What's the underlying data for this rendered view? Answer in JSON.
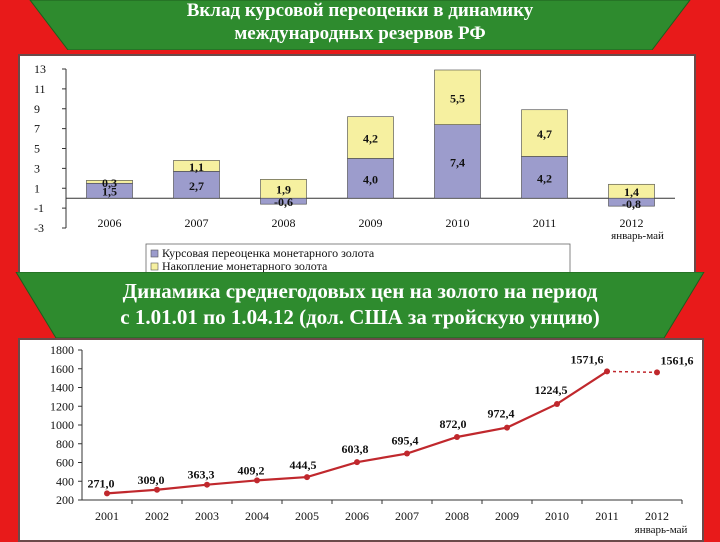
{
  "colors": {
    "background": "#e81a1a",
    "banner": "#2e8b2e",
    "bar_revaluation": "#9c9ccc",
    "bar_accumulation": "#f6f0a0",
    "line": "#c0282d"
  },
  "header": {
    "title_line1": "Вклад курсовой переоценки в динамику",
    "title_line2": "международных резервов РФ"
  },
  "subheader": {
    "title_line1": "Динамика среднегодовых цен на золото на период",
    "title_line2": "с 1.01.01 по 1.04.12 (дол. США за тройскую унцию)"
  },
  "chart_data": [
    {
      "type": "bar",
      "stacked": true,
      "categories": [
        "2006",
        "2007",
        "2008",
        "2009",
        "2010",
        "2011",
        "2012"
      ],
      "category_sublabels": [
        "",
        "",
        "",
        "",
        "",
        "",
        "январь-май"
      ],
      "series": [
        {
          "name": "Курсовая переоценка монетарного золота",
          "values": [
            1.5,
            2.7,
            -0.6,
            4.0,
            7.4,
            4.2,
            -0.8
          ]
        },
        {
          "name": "Накопление монетарного золота",
          "values": [
            0.3,
            1.1,
            1.9,
            4.2,
            5.5,
            4.7,
            1.4
          ]
        }
      ],
      "data_labels": [
        [
          "1,5",
          "2,7",
          "-0,6",
          "4,0",
          "7,4",
          "4,2",
          "-0,8"
        ],
        [
          "0,3",
          "1,1",
          "1,9",
          "4,2",
          "5,5",
          "4,7",
          "1,4"
        ]
      ],
      "y_ticks": [
        "13",
        "11",
        "9",
        "7",
        "5",
        "3",
        "1",
        "-1",
        "-3"
      ],
      "ylim": [
        -3,
        13
      ],
      "legend_position": "bottom",
      "grid": false
    },
    {
      "type": "line",
      "x": [
        "2001",
        "2002",
        "2003",
        "2004",
        "2005",
        "2006",
        "2007",
        "2008",
        "2009",
        "2010",
        "2011",
        "2012"
      ],
      "x_sublabels": [
        "",
        "",
        "",
        "",
        "",
        "",
        "",
        "",
        "",
        "",
        "",
        "январь-май"
      ],
      "values": [
        271.0,
        309.0,
        363.3,
        409.2,
        444.5,
        603.8,
        695.4,
        872.0,
        972.4,
        1224.5,
        1571.6,
        1561.6
      ],
      "data_labels": [
        "271,0",
        "309,0",
        "363,3",
        "409,2",
        "444,5",
        "603,8",
        "695,4",
        "872,0",
        "972,4",
        "1224,5",
        "1571,6",
        "1561,6"
      ],
      "y_ticks": [
        "1800",
        "1600",
        "1400",
        "1200",
        "1000",
        "800",
        "600",
        "400",
        "200"
      ],
      "ylim": [
        200,
        1800
      ],
      "grid": false
    }
  ]
}
